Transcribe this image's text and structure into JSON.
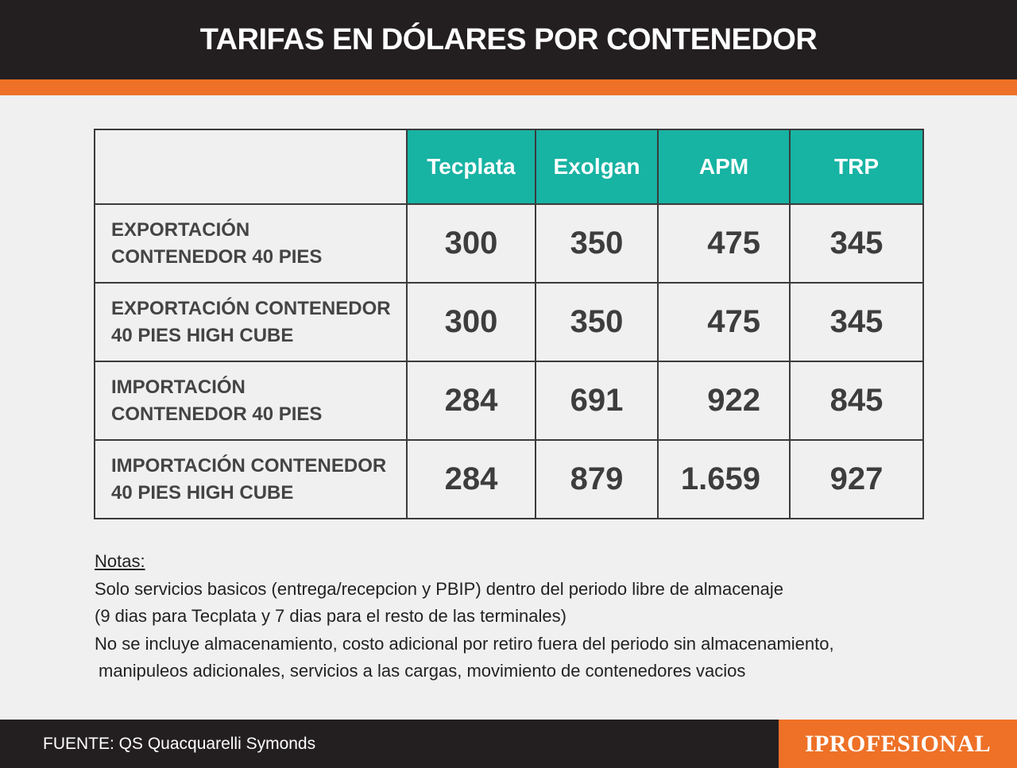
{
  "title": "TARIFAS EN DÓLARES POR CONTENEDOR",
  "colors": {
    "header_bg": "#231f20",
    "accent_orange": "#ee7127",
    "teal": "#17b3a3"
  },
  "chart_data": {
    "type": "table",
    "columns": [
      "Tecplata",
      "Exolgan",
      "APM",
      "TRP"
    ],
    "rows": [
      {
        "label_lines": [
          "EXPORTACIÓN",
          "CONTENEDOR 40 PIES"
        ],
        "values": [
          "300",
          "350",
          "475",
          "345"
        ]
      },
      {
        "label_lines": [
          "EXPORTACIÓN CONTENEDOR",
          "40 PIES HIGH CUBE"
        ],
        "values": [
          "300",
          "350",
          "475",
          "345"
        ]
      },
      {
        "label_lines": [
          "IMPORTACIÓN",
          "CONTENEDOR 40 PIES"
        ],
        "values": [
          "284",
          "691",
          "922",
          "845"
        ]
      },
      {
        "label_lines": [
          "IMPORTACIÓN CONTENEDOR",
          "40 PIES HIGH CUBE"
        ],
        "values": [
          "284",
          "879",
          "1.659",
          "927"
        ]
      }
    ]
  },
  "notes": {
    "title": "Notas:",
    "lines": [
      "Solo servicios basicos (entrega/recepcion y PBIP) dentro del periodo libre de almacenaje",
      "(9 dias para Tecplata y 7 dias para el resto de las terminales)",
      "No se incluye almacenamiento, costo adicional por retiro fuera del periodo sin almacenamiento,",
      "manipuleos adicionales, servicios a las cargas, movimiento de contenedores vacios"
    ]
  },
  "footer": {
    "source": "FUENTE: QS Quacquarelli Symonds",
    "brand": "IPROFESIONAL"
  }
}
